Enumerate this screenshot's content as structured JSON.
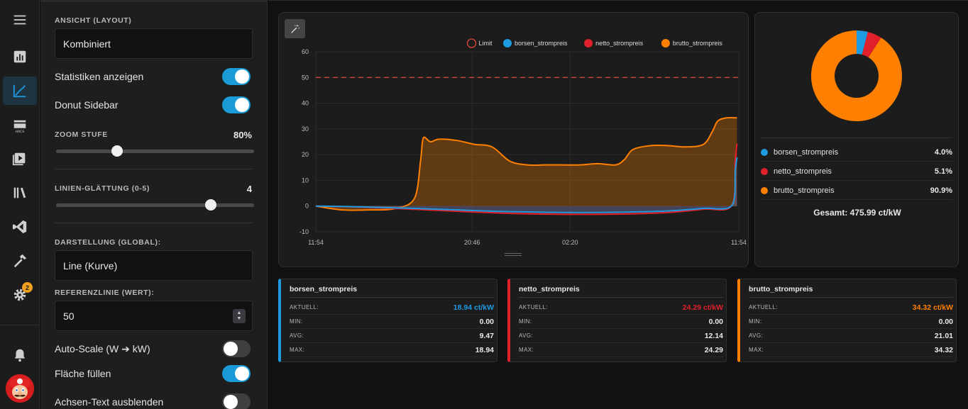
{
  "rail": {
    "items": [
      {
        "icon": "menu-icon"
      },
      {
        "icon": "bar-chart-icon"
      },
      {
        "icon": "line-chart-icon",
        "active": true
      },
      {
        "icon": "hacs-icon",
        "text": "HACS"
      },
      {
        "icon": "media-icon"
      },
      {
        "icon": "library-icon"
      },
      {
        "icon": "vscode-icon"
      },
      {
        "icon": "hammer-icon"
      },
      {
        "icon": "gear-icon",
        "badge": "2"
      },
      {
        "icon": "bell-icon"
      }
    ]
  },
  "settings": {
    "layout_label": "ANSICHT (LAYOUT)",
    "layout_value": "Kombiniert",
    "show_stats_label": "Statistiken anzeigen",
    "show_stats": true,
    "donut_label": "Donut Sidebar",
    "donut": true,
    "zoom_label": "ZOOM STUFE",
    "zoom_value": "80%",
    "zoom_fraction": 0.31,
    "smooth_label": "LINIEN-GLÄTTUNG (0-5)",
    "smooth_value": "4",
    "smooth_fraction": 0.78,
    "display_label": "DARSTELLUNG (GLOBAL):",
    "display_value": "Line (Kurve)",
    "ref_label": "REFERENZLINIE (WERT):",
    "ref_value": "50",
    "autoscale_label": "Auto-Scale (W ➔ kW)",
    "autoscale": false,
    "fill_label": "Fläche füllen",
    "fill": true,
    "hide_axis_label": "Achsen-Text ausblenden",
    "hide_axis": false
  },
  "colors": {
    "blue": "#1e9be0",
    "red": "#e0202a",
    "orange": "#ff8000",
    "limit": "#e0483c"
  },
  "chart_data": {
    "type": "area",
    "legend": [
      "Limit",
      "borsen_strompreis",
      "netto_strompreis",
      "brutto_strompreis"
    ],
    "legend_position": "top-right",
    "y_ticks": [
      "60",
      "50",
      "40",
      "30",
      "20",
      "10",
      "0",
      "-10"
    ],
    "ylim": [
      -10,
      60
    ],
    "x_ticks": [
      "11:54",
      "20:46",
      "02:20",
      "11:54"
    ],
    "x_tick_hours": [
      0,
      8.87,
      14.43,
      24
    ],
    "reference_line": 50,
    "grid": true,
    "series": [
      {
        "name": "brutto_strompreis",
        "color": "#ff8000",
        "x": [
          0,
          1.5,
          3,
          4.5,
          5.6,
          5.95,
          6.1,
          6.5,
          7,
          8,
          9,
          10,
          11,
          12,
          13,
          14,
          15,
          16,
          17,
          17.5,
          18,
          19,
          20,
          21,
          22,
          22.5,
          22.8,
          23.3,
          23.9
        ],
        "values": [
          0,
          -1.5,
          -1.5,
          -1,
          3,
          18,
          26.5,
          25,
          26,
          25.5,
          24,
          23,
          17.5,
          16,
          16,
          16,
          16,
          16.5,
          16,
          18,
          22,
          23.5,
          23.5,
          23,
          24,
          29,
          33,
          34.3,
          34.3
        ]
      },
      {
        "name": "netto_strompreis",
        "color": "#e0202a",
        "x": [
          0,
          2,
          4,
          6,
          8,
          10,
          12,
          14,
          16,
          18,
          20,
          22,
          23.6,
          23.8,
          23.9
        ],
        "values": [
          0,
          -0.3,
          -0.8,
          -1.4,
          -2,
          -2.6,
          -3,
          -3.2,
          -3.2,
          -3,
          -2.5,
          -1.2,
          0.2,
          18,
          24.29
        ]
      },
      {
        "name": "borsen_strompreis",
        "color": "#1e9be0",
        "x": [
          0,
          2,
          4,
          6,
          8,
          10,
          12,
          14,
          16,
          18,
          20,
          22,
          23.6,
          23.8,
          23.9
        ],
        "values": [
          0,
          -0.2,
          -0.6,
          -1,
          -1.5,
          -2,
          -2.3,
          -2.5,
          -2.5,
          -2.3,
          -1.9,
          -0.9,
          0.2,
          14,
          18.94
        ]
      }
    ]
  },
  "donut": {
    "items": [
      {
        "name": "borsen_strompreis",
        "pct": "4.0%",
        "value": 4.0,
        "color": "#1e9be0"
      },
      {
        "name": "netto_strompreis",
        "pct": "5.1%",
        "value": 5.1,
        "color": "#e0202a"
      },
      {
        "name": "brutto_strompreis",
        "pct": "90.9%",
        "value": 90.9,
        "color": "#ff8000"
      }
    ],
    "total": "Gesamt: 475.99 ct/kW"
  },
  "stats": [
    {
      "title": "borsen_strompreis",
      "color": "#1e9be0",
      "rows": [
        {
          "k": "AKTUELL:",
          "v": "18.94 ct/kW",
          "accent": true
        },
        {
          "k": "MIN:",
          "v": "0.00"
        },
        {
          "k": "AVG:",
          "v": "9.47"
        },
        {
          "k": "MAX:",
          "v": "18.94"
        }
      ]
    },
    {
      "title": "netto_strompreis",
      "color": "#e0202a",
      "rows": [
        {
          "k": "AKTUELL:",
          "v": "24.29 ct/kW",
          "accent": true
        },
        {
          "k": "MIN:",
          "v": "0.00"
        },
        {
          "k": "AVG:",
          "v": "12.14"
        },
        {
          "k": "MAX:",
          "v": "24.29"
        }
      ]
    },
    {
      "title": "brutto_strompreis",
      "color": "#ff8000",
      "rows": [
        {
          "k": "AKTUELL:",
          "v": "34.32 ct/kW",
          "accent": true
        },
        {
          "k": "MIN:",
          "v": "0.00"
        },
        {
          "k": "AVG:",
          "v": "21.01"
        },
        {
          "k": "MAX:",
          "v": "34.32"
        }
      ]
    }
  ]
}
